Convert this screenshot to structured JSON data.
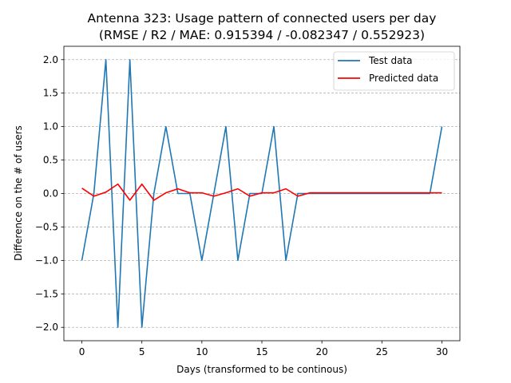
{
  "chart_data": {
    "type": "line",
    "title": "Antenna 323: Usage pattern of connected users per day",
    "subtitle": "(RMSE / R2 / MAE: 0.915394 / -0.082347 / 0.552923)",
    "xlabel": "Days (transformed to be continous)",
    "ylabel": "Difference on the # of users",
    "xlim": [
      -1.5,
      31.5
    ],
    "ylim": [
      -2.2,
      2.2
    ],
    "xticks": [
      0,
      5,
      10,
      15,
      20,
      25,
      30
    ],
    "yticks": [
      -2.0,
      -1.5,
      -1.0,
      -0.5,
      0.0,
      0.5,
      1.0,
      1.5,
      2.0
    ],
    "xtick_labels": [
      "0",
      "5",
      "10",
      "15",
      "20",
      "25",
      "30"
    ],
    "ytick_labels": [
      "−2.0",
      "−1.5",
      "−1.0",
      "−0.5",
      "0.0",
      "0.5",
      "1.0",
      "1.5",
      "2.0"
    ],
    "grid": "y-dashed",
    "legend_position": "top-right",
    "x": [
      0,
      1,
      2,
      3,
      4,
      5,
      6,
      7,
      8,
      9,
      10,
      11,
      12,
      13,
      14,
      15,
      16,
      17,
      18,
      19,
      20,
      21,
      22,
      23,
      24,
      25,
      26,
      27,
      28,
      29,
      30
    ],
    "series": [
      {
        "name": "Test data",
        "color": "#1f77b4",
        "values": [
          -1,
          0,
          2,
          -2,
          2,
          -2,
          0,
          1,
          0,
          0,
          -1,
          0,
          1,
          -1,
          0,
          0,
          1,
          -1,
          0,
          0,
          0,
          0,
          0,
          0,
          0,
          0,
          0,
          0,
          0,
          0,
          1
        ]
      },
      {
        "name": "Predicted data",
        "color": "#ff0000",
        "values": [
          0.08,
          -0.04,
          0.02,
          0.14,
          -0.1,
          0.14,
          -0.1,
          0.01,
          0.07,
          0.01,
          0.01,
          -0.04,
          0.01,
          0.07,
          -0.04,
          0.01,
          0.01,
          0.07,
          -0.04,
          0.01,
          0.01,
          0.01,
          0.01,
          0.01,
          0.01,
          0.01,
          0.01,
          0.01,
          0.01,
          0.01,
          0.01
        ]
      }
    ]
  }
}
